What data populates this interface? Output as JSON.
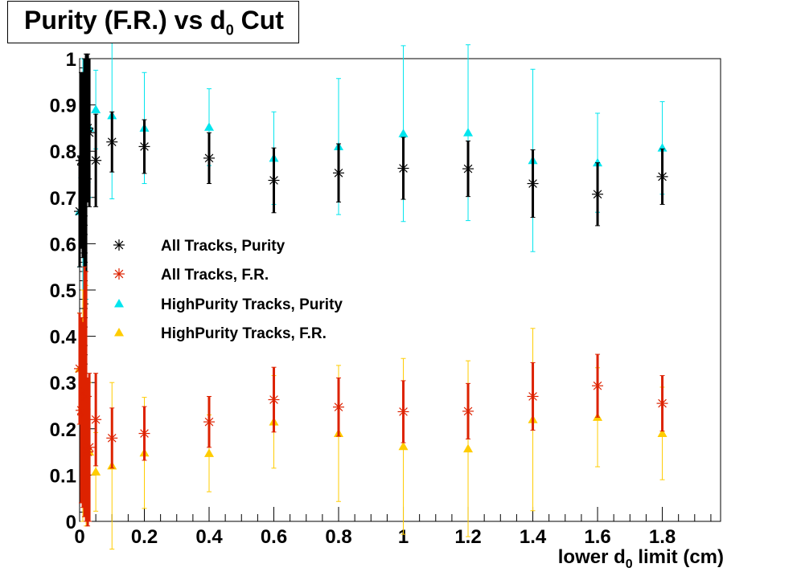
{
  "title": {
    "pre": "Purity (F.R.) vs d",
    "sub": "0",
    "post": " Cut"
  },
  "xlabel": {
    "pre": "lower d",
    "sub": "0",
    "post": " limit (cm)"
  },
  "chart_data": {
    "type": "scatter",
    "xlim": [
      0,
      1.98
    ],
    "ylim": [
      0,
      1
    ],
    "x_ticks": [
      "0",
      "0.2",
      "0.4",
      "0.6",
      "0.8",
      "1",
      "1.2",
      "1.4",
      "1.6",
      "1.8"
    ],
    "y_ticks": [
      "0",
      "0.1",
      "0.2",
      "0.3",
      "0.4",
      "0.5",
      "0.6",
      "0.7",
      "0.8",
      "0.9",
      "1"
    ],
    "legend_position": "center-left",
    "series": [
      {
        "name": "All Tracks, Purity",
        "marker": "star",
        "color": "#000000",
        "points": [
          {
            "x": 0.0,
            "y": 0.67,
            "err": 0.12
          },
          {
            "x": 0.005,
            "y": 0.78,
            "err": 0.19
          },
          {
            "x": 0.01,
            "y": 0.77,
            "err": 0.2
          },
          {
            "x": 0.015,
            "y": 0.73,
            "err": 0.27
          },
          {
            "x": 0.02,
            "y": 0.74,
            "err": 0.27
          },
          {
            "x": 0.025,
            "y": 0.85,
            "err": 0.16
          },
          {
            "x": 0.03,
            "y": 0.84,
            "err": 0.16
          },
          {
            "x": 0.05,
            "y": 0.78,
            "err": 0.1
          },
          {
            "x": 0.1,
            "y": 0.82,
            "err": 0.065
          },
          {
            "x": 0.2,
            "y": 0.81,
            "err": 0.058
          },
          {
            "x": 0.4,
            "y": 0.785,
            "err": 0.055
          },
          {
            "x": 0.6,
            "y": 0.737,
            "err": 0.07
          },
          {
            "x": 0.8,
            "y": 0.753,
            "err": 0.063
          },
          {
            "x": 1.0,
            "y": 0.763,
            "err": 0.067
          },
          {
            "x": 1.2,
            "y": 0.762,
            "err": 0.06
          },
          {
            "x": 1.4,
            "y": 0.73,
            "err": 0.073
          },
          {
            "x": 1.6,
            "y": 0.707,
            "err": 0.068
          },
          {
            "x": 1.8,
            "y": 0.745,
            "err": 0.06
          }
        ]
      },
      {
        "name": "All Tracks, F.R.",
        "marker": "star",
        "color": "#dd2200",
        "points": [
          {
            "x": 0.0,
            "y": 0.33,
            "err": 0.12
          },
          {
            "x": 0.005,
            "y": 0.24,
            "err": 0.2
          },
          {
            "x": 0.01,
            "y": 0.23,
            "err": 0.2
          },
          {
            "x": 0.015,
            "y": 0.28,
            "err": 0.27
          },
          {
            "x": 0.02,
            "y": 0.27,
            "err": 0.27
          },
          {
            "x": 0.025,
            "y": 0.15,
            "err": 0.16
          },
          {
            "x": 0.03,
            "y": 0.16,
            "err": 0.16
          },
          {
            "x": 0.05,
            "y": 0.22,
            "err": 0.1
          },
          {
            "x": 0.1,
            "y": 0.18,
            "err": 0.065
          },
          {
            "x": 0.2,
            "y": 0.19,
            "err": 0.058
          },
          {
            "x": 0.4,
            "y": 0.215,
            "err": 0.055
          },
          {
            "x": 0.6,
            "y": 0.263,
            "err": 0.07
          },
          {
            "x": 0.8,
            "y": 0.247,
            "err": 0.063
          },
          {
            "x": 1.0,
            "y": 0.237,
            "err": 0.067
          },
          {
            "x": 1.2,
            "y": 0.238,
            "err": 0.06
          },
          {
            "x": 1.4,
            "y": 0.27,
            "err": 0.073
          },
          {
            "x": 1.6,
            "y": 0.293,
            "err": 0.068
          },
          {
            "x": 1.8,
            "y": 0.255,
            "err": 0.06
          }
        ]
      },
      {
        "name": "HighPurity Tracks, Purity",
        "marker": "triangle",
        "color": "#00e5ee",
        "points": [
          {
            "x": 0.0,
            "y": 0.67,
            "err": 0.12
          },
          {
            "x": 0.01,
            "y": 0.75,
            "err": 0.25
          },
          {
            "x": 0.02,
            "y": 0.74,
            "err": 0.26
          },
          {
            "x": 0.03,
            "y": 0.85,
            "err": 0.15
          },
          {
            "x": 0.05,
            "y": 0.89,
            "err": 0.085
          },
          {
            "x": 0.1,
            "y": 0.877,
            "err": 0.18
          },
          {
            "x": 0.2,
            "y": 0.85,
            "err": 0.12
          },
          {
            "x": 0.4,
            "y": 0.852,
            "err": 0.083
          },
          {
            "x": 0.6,
            "y": 0.785,
            "err": 0.1
          },
          {
            "x": 0.8,
            "y": 0.81,
            "err": 0.147
          },
          {
            "x": 1.0,
            "y": 0.838,
            "err": 0.19
          },
          {
            "x": 1.2,
            "y": 0.84,
            "err": 0.19
          },
          {
            "x": 1.4,
            "y": 0.78,
            "err": 0.197
          },
          {
            "x": 1.6,
            "y": 0.775,
            "err": 0.107
          },
          {
            "x": 1.8,
            "y": 0.807,
            "err": 0.1
          }
        ]
      },
      {
        "name": "HighPurity Tracks, F.R.",
        "marker": "triangle",
        "color": "#ffcc00",
        "points": [
          {
            "x": 0.0,
            "y": 0.33,
            "err": 0.12
          },
          {
            "x": 0.01,
            "y": 0.25,
            "err": 0.25
          },
          {
            "x": 0.02,
            "y": 0.25,
            "err": 0.26
          },
          {
            "x": 0.03,
            "y": 0.15,
            "err": 0.15
          },
          {
            "x": 0.05,
            "y": 0.107,
            "err": 0.085
          },
          {
            "x": 0.1,
            "y": 0.12,
            "err": 0.18
          },
          {
            "x": 0.2,
            "y": 0.148,
            "err": 0.12
          },
          {
            "x": 0.4,
            "y": 0.147,
            "err": 0.083
          },
          {
            "x": 0.6,
            "y": 0.215,
            "err": 0.1
          },
          {
            "x": 0.8,
            "y": 0.19,
            "err": 0.147
          },
          {
            "x": 1.0,
            "y": 0.162,
            "err": 0.19
          },
          {
            "x": 1.2,
            "y": 0.157,
            "err": 0.19
          },
          {
            "x": 1.4,
            "y": 0.22,
            "err": 0.197
          },
          {
            "x": 1.6,
            "y": 0.225,
            "err": 0.107
          },
          {
            "x": 1.8,
            "y": 0.19,
            "err": 0.1
          }
        ]
      }
    ]
  }
}
